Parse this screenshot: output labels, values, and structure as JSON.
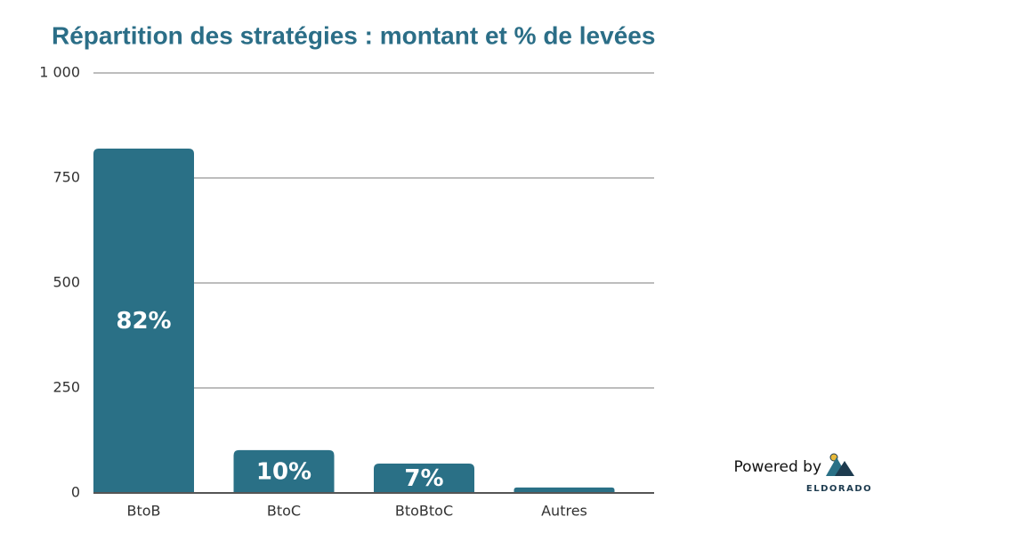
{
  "chart_data": {
    "type": "bar",
    "title": "Répartition des stratégies : montant et % de levées",
    "categories": [
      "BtoB",
      "BtoC",
      "BtoBtoC",
      "Autres"
    ],
    "values": [
      820,
      102,
      70,
      13
    ],
    "share_labels": [
      "82%",
      "10%",
      "7%",
      null
    ],
    "color": "#2a7086",
    "ylim": [
      0,
      1000
    ],
    "yticks": [
      0,
      250,
      500,
      750,
      {
        "value": 1000,
        "label": "1 000"
      }
    ],
    "grid": true
  },
  "branding": {
    "text": "Powered by",
    "name": "ELDORADO"
  }
}
